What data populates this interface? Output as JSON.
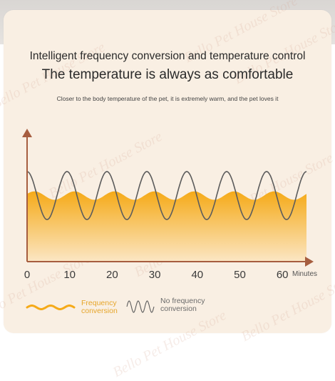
{
  "headline": {
    "title": "Intelligent frequency conversion and temperature control",
    "subtitle": "The temperature is always as comfortable",
    "caption": "Closer to the body temperature of the pet, it is extremely warm, and the pet loves it"
  },
  "watermark_text": "Bello Pet House Store",
  "chart_data": {
    "type": "line",
    "title": "",
    "xlabel": "Minutes",
    "ylabel": "",
    "x_ticks": [
      0,
      10,
      20,
      30,
      40,
      50,
      60
    ],
    "xlim": [
      0,
      66
    ],
    "ylim": [
      0,
      1
    ],
    "grid": false,
    "legend_position": "bottom-left",
    "series": [
      {
        "name": "Frequency conversion",
        "style": "filled-wave",
        "level": 0.55,
        "amplitude": 0.035,
        "cycles": 7,
        "color": "#f5aa18"
      },
      {
        "name": "No frequency conversion",
        "style": "wave",
        "level": 0.55,
        "amplitude": 0.2,
        "cycles": 7,
        "color": "#5c5c5c"
      }
    ]
  },
  "legend": {
    "frequency_label": "Frequency\nconversion",
    "no_frequency_label": "No frequency\nconversion"
  },
  "colors": {
    "axis": "#a65d3f",
    "fill_top": "#f5aa18",
    "fill_bottom": "#fbe6c4",
    "legend_frequency_text": "#e6a52a",
    "legend_no_frequency_text": "#6b6b6b"
  }
}
